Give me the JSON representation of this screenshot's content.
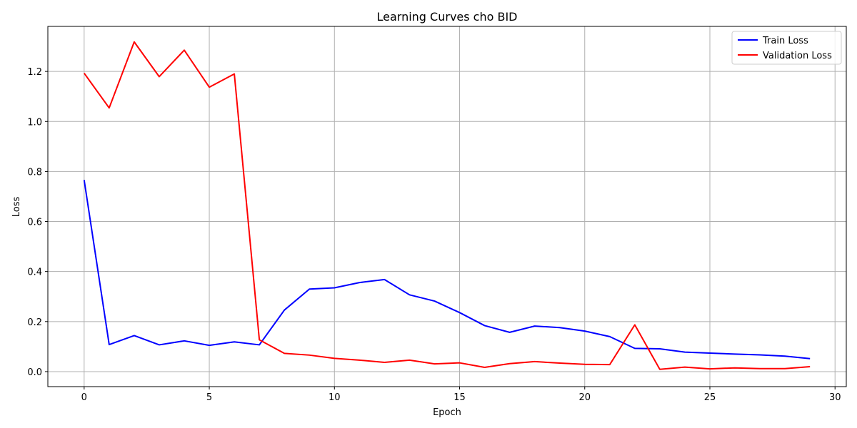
{
  "chart_data": {
    "type": "line",
    "title": "Learning Curves cho BID",
    "xlabel": "Epoch",
    "ylabel": "Loss",
    "xlim": [
      -1.45,
      30.45
    ],
    "ylim": [
      -0.06,
      1.38
    ],
    "xticks": [
      0,
      5,
      10,
      15,
      20,
      25,
      30
    ],
    "yticks": [
      0.0,
      0.2,
      0.4,
      0.6,
      0.8,
      1.0,
      1.2
    ],
    "ytick_labels": [
      "0.0",
      "0.2",
      "0.4",
      "0.6",
      "0.8",
      "1.0",
      "1.2"
    ],
    "grid": true,
    "legend_position": "top-right",
    "x": [
      0,
      1,
      2,
      3,
      4,
      5,
      6,
      7,
      8,
      9,
      10,
      11,
      12,
      13,
      14,
      15,
      16,
      17,
      18,
      19,
      20,
      21,
      22,
      23,
      24,
      25,
      26,
      27,
      28,
      29
    ],
    "series": [
      {
        "name": "Train Loss",
        "color": "#0000ff",
        "values": [
          0.766,
          0.108,
          0.144,
          0.107,
          0.123,
          0.105,
          0.119,
          0.107,
          0.246,
          0.33,
          0.335,
          0.356,
          0.368,
          0.307,
          0.282,
          0.236,
          0.184,
          0.157,
          0.182,
          0.176,
          0.162,
          0.14,
          0.093,
          0.091,
          0.078,
          0.074,
          0.07,
          0.067,
          0.062,
          0.052
        ]
      },
      {
        "name": "Validation Loss",
        "color": "#ff0000",
        "values": [
          1.193,
          1.054,
          1.318,
          1.179,
          1.285,
          1.137,
          1.19,
          0.127,
          0.073,
          0.066,
          0.053,
          0.046,
          0.037,
          0.046,
          0.031,
          0.035,
          0.017,
          0.032,
          0.04,
          0.034,
          0.029,
          0.028,
          0.187,
          0.009,
          0.018,
          0.011,
          0.015,
          0.012,
          0.012,
          0.02
        ]
      }
    ]
  }
}
